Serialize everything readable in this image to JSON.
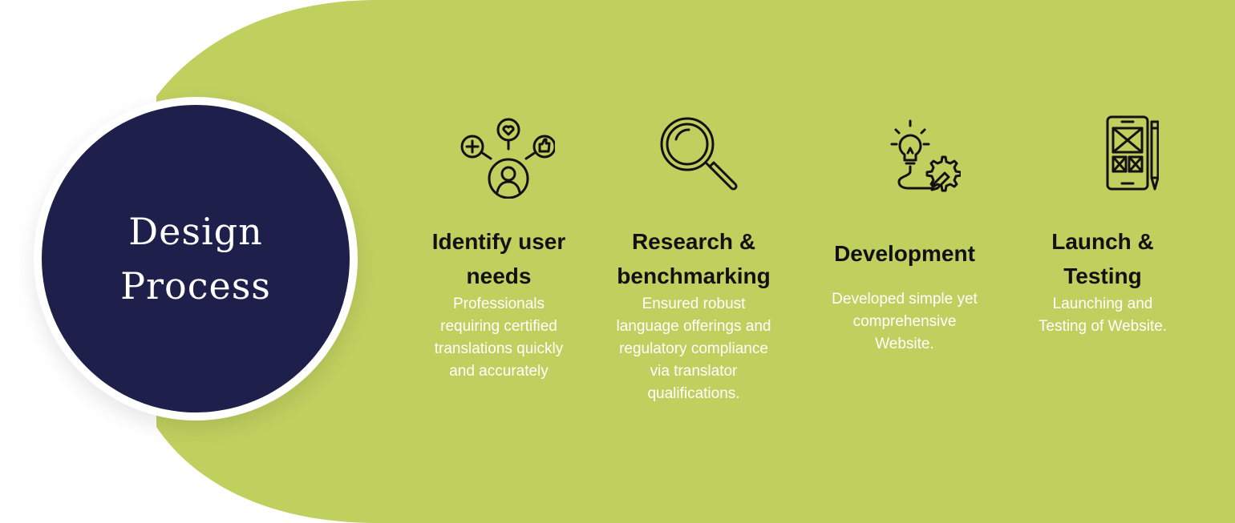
{
  "title": {
    "line1": "Design",
    "line2": "Process"
  },
  "colors": {
    "band": "#bfd05f",
    "circle": "#1e1f4a",
    "title_text": "#ffffff",
    "step_title": "#111111",
    "step_desc": "#ffffff"
  },
  "steps": [
    {
      "icon": "user-needs-icon",
      "title_line1": "Identify user",
      "title_line2": "needs",
      "desc_line1": "Professionals",
      "desc_line2": "requiring certified",
      "desc_line3": "translations quickly",
      "desc_line4": "and accurately"
    },
    {
      "icon": "magnifier-icon",
      "title_line1": "Research &",
      "title_line2": "benchmarking",
      "desc_line1": "Ensured robust",
      "desc_line2": "language offerings and",
      "desc_line3": "regulatory compliance",
      "desc_line4": "via translator",
      "desc_line5": "qualifications."
    },
    {
      "icon": "idea-gear-icon",
      "title_line1": "Development",
      "desc_line1": "Developed simple yet",
      "desc_line2": "comprehensive",
      "desc_line3": "Website."
    },
    {
      "icon": "mobile-wireframe-icon",
      "title_line1": "Launch &",
      "title_line2": "Testing",
      "desc_line1": "Launching and",
      "desc_line2": "Testing of Website."
    }
  ]
}
